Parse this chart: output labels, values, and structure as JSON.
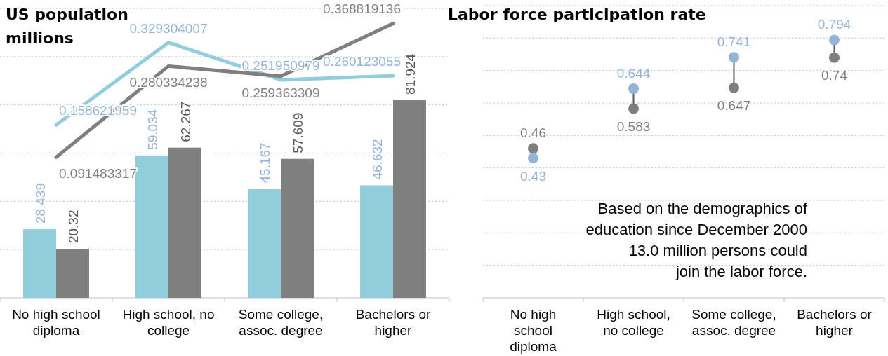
{
  "chart_data": [
    {
      "type": "bar",
      "title": "US population",
      "subtitle": "millions",
      "categories": [
        "No high school diploma",
        "High school, no college",
        "Some college, assoc. degree",
        "Bachelors or higher"
      ],
      "series": [
        {
          "color": "#92cddc",
          "values": [
            28.439,
            59.034,
            45.167,
            46.632
          ]
        },
        {
          "color": "#7f7f7f",
          "values": [
            20.32,
            62.267,
            57.609,
            81.924
          ]
        },
        {
          "type": "line",
          "axis": "y2",
          "color": "#92cddc",
          "values": [
            0.158621959,
            0.329304007,
            0.251950979,
            0.260123055
          ]
        },
        {
          "type": "line",
          "axis": "y2",
          "color": "#7f7f7f",
          "values": [
            0.091483317,
            0.280334238,
            0.259363309,
            0.368819136
          ]
        }
      ],
      "ylim": [
        0,
        120
      ],
      "yticks": [
        {
          "value": 0,
          "label": null
        },
        {
          "value": 20,
          "label": null
        },
        {
          "value": 40,
          "label": null
        },
        {
          "value": 60,
          "label": null
        },
        {
          "value": 80,
          "label": null
        },
        {
          "value": 100,
          "label": null
        },
        {
          "value": 120,
          "label": null
        }
      ],
      "y2lim": [
        -0.2,
        0.4
      ],
      "grid": "y",
      "tick_labels": "x",
      "data_labels": true
    },
    {
      "type": "scatter",
      "title": "Labor force participation rate",
      "categories": [
        "No high school diploma",
        "High school, no college",
        "Some college, assoc. degree",
        "Bachelors or higher"
      ],
      "series": [
        {
          "color": "#7f7f7f",
          "values": [
            0.46,
            0.583,
            0.647,
            0.74
          ]
        },
        {
          "color": "#95b3d7",
          "values": [
            0.43,
            0.644,
            0.741,
            0.794
          ]
        }
      ],
      "ylim": [
        0,
        0.9
      ],
      "yticks": [
        {
          "value": 0,
          "label": null
        },
        {
          "value": 0.1,
          "label": null
        },
        {
          "value": 0.2,
          "label": null
        },
        {
          "value": 0.3,
          "label": null
        },
        {
          "value": 0.4,
          "label": null
        },
        {
          "value": 0.5,
          "label": null
        },
        {
          "value": 0.6,
          "label": null
        },
        {
          "value": 0.7,
          "label": null
        },
        {
          "value": 0.8,
          "label": null
        },
        {
          "value": 0.9,
          "label": null
        }
      ],
      "grid": "y",
      "tick_labels": "x",
      "data_labels": true,
      "marker": "circle",
      "annotations": [
        "Based on the demographics of education since December 2000 13.0 million persons could join the labor force."
      ]
    }
  ]
}
